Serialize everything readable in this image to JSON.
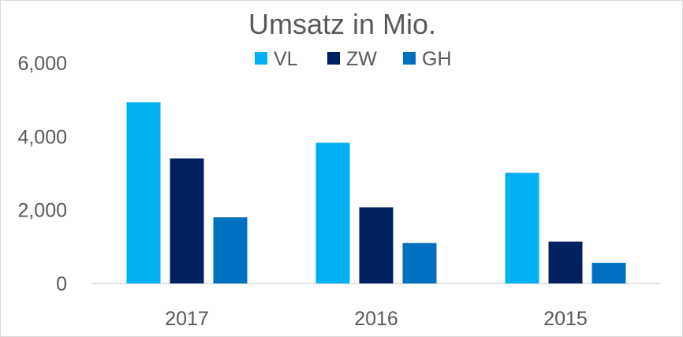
{
  "chart_data": {
    "type": "bar",
    "title": "Umsatz in Mio.",
    "categories": [
      "2017",
      "2016",
      "2015"
    ],
    "series": [
      {
        "name": "VL",
        "color": "#00b0f0",
        "values": [
          4930,
          3830,
          3010
        ]
      },
      {
        "name": "ZW",
        "color": "#002060",
        "values": [
          3400,
          2070,
          1140
        ]
      },
      {
        "name": "GH",
        "color": "#0070c0",
        "values": [
          1800,
          1100,
          560
        ]
      }
    ],
    "y_ticks": [
      {
        "value": 0,
        "label": "0"
      },
      {
        "value": 2000,
        "label": "2,000"
      },
      {
        "value": 4000,
        "label": "4,000"
      },
      {
        "value": 6000,
        "label": "6,000"
      }
    ],
    "xlabel": "",
    "ylabel": "",
    "ylim": [
      0,
      6000
    ],
    "grid": false,
    "legend_position": "top"
  }
}
